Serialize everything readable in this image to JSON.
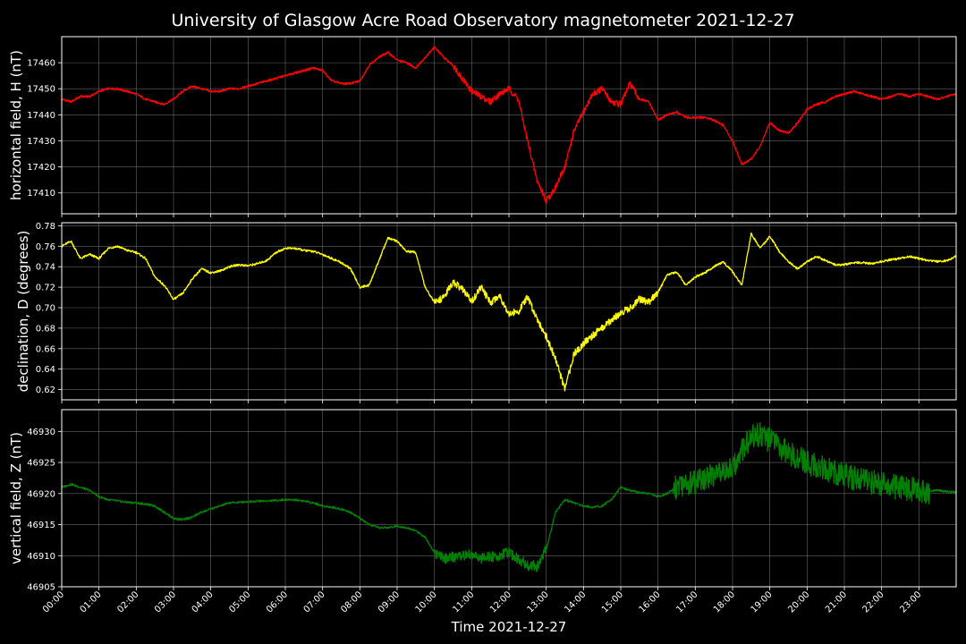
{
  "chart_data": {
    "type": "line",
    "title": "University of Glasgow Acre Road Observatory magnetometer 2021-12-27",
    "xlabel": "Time 2021-12-27",
    "x_ticks": [
      "00:00",
      "01:00",
      "02:00",
      "03:00",
      "04:00",
      "05:00",
      "06:00",
      "07:00",
      "08:00",
      "09:00",
      "10:00",
      "11:00",
      "12:00",
      "13:00",
      "14:00",
      "15:00",
      "16:00",
      "17:00",
      "18:00",
      "19:00",
      "20:00",
      "21:00",
      "22:00",
      "23:00"
    ],
    "xlim": [
      0,
      24
    ],
    "grid": true,
    "colors": {
      "background": "#000000",
      "grid": "#808080",
      "H": "#ff0000",
      "D": "#ffff00",
      "Z": "#008000"
    },
    "panels": [
      {
        "name": "H",
        "ylabel": "horizontal field, H (nT)",
        "color": "#ff0000",
        "ylim": [
          17402,
          17470
        ],
        "yticks": [
          17410,
          17420,
          17430,
          17440,
          17450,
          17460
        ],
        "x": [
          0,
          0.25,
          0.5,
          0.75,
          1,
          1.25,
          1.5,
          1.75,
          2,
          2.25,
          2.5,
          2.75,
          3,
          3.25,
          3.5,
          3.75,
          4,
          4.25,
          4.5,
          4.75,
          5,
          5.25,
          5.5,
          5.75,
          6,
          6.25,
          6.5,
          6.75,
          7,
          7.25,
          7.5,
          7.75,
          8,
          8.25,
          8.5,
          8.75,
          9,
          9.25,
          9.5,
          9.75,
          10,
          10.25,
          10.5,
          10.75,
          11,
          11.25,
          11.5,
          11.75,
          12,
          12.25,
          12.5,
          12.75,
          13,
          13.25,
          13.5,
          13.75,
          14,
          14.25,
          14.5,
          14.75,
          15,
          15.25,
          15.5,
          15.75,
          16,
          16.25,
          16.5,
          16.75,
          17,
          17.25,
          17.5,
          17.75,
          18,
          18.25,
          18.5,
          18.75,
          19,
          19.25,
          19.5,
          19.75,
          20,
          20.25,
          20.5,
          20.75,
          21,
          21.25,
          21.5,
          21.75,
          22,
          22.25,
          22.5,
          22.75,
          23,
          23.25,
          23.5,
          23.75,
          24
        ],
        "y": [
          17446,
          17445,
          17447,
          17447,
          17449,
          17450,
          17450,
          17449,
          17448,
          17446,
          17445,
          17444,
          17446,
          17449,
          17451,
          17450,
          17449,
          17449,
          17450,
          17450,
          17451,
          17452,
          17453,
          17454,
          17455,
          17456,
          17457,
          17458,
          17457,
          17453,
          17452,
          17452,
          17453,
          17459,
          17462,
          17464,
          17461,
          17460,
          17458,
          17462,
          17466,
          17462,
          17459,
          17454,
          17449,
          17447,
          17445,
          17448,
          17450,
          17446,
          17430,
          17415,
          17407,
          17412,
          17420,
          17434,
          17441,
          17448,
          17450,
          17445,
          17444,
          17452,
          17446,
          17445,
          17438,
          17440,
          17441,
          17439,
          17439,
          17439,
          17438,
          17436,
          17430,
          17421,
          17423,
          17428,
          17437,
          17434,
          17433,
          17437,
          17442,
          17444,
          17445,
          17447,
          17448,
          17449,
          17448,
          17447,
          17446,
          17447,
          17448,
          17447,
          17448,
          17447,
          17446,
          17447,
          17448
        ]
      },
      {
        "name": "D",
        "ylabel": "declination, D (degrees)",
        "color": "#ffff00",
        "ylim": [
          0.61,
          0.783
        ],
        "yticks": [
          0.62,
          0.64,
          0.66,
          0.68,
          0.7,
          0.72,
          0.74,
          0.76,
          0.78
        ],
        "x": [
          0,
          0.25,
          0.5,
          0.75,
          1,
          1.25,
          1.5,
          1.75,
          2,
          2.25,
          2.5,
          2.75,
          3,
          3.25,
          3.5,
          3.75,
          4,
          4.25,
          4.5,
          4.75,
          5,
          5.25,
          5.5,
          5.75,
          6,
          6.25,
          6.5,
          6.75,
          7,
          7.25,
          7.5,
          7.75,
          8,
          8.25,
          8.5,
          8.75,
          9,
          9.25,
          9.5,
          9.75,
          10,
          10.25,
          10.5,
          10.75,
          11,
          11.25,
          11.5,
          11.75,
          12,
          12.25,
          12.5,
          12.75,
          13,
          13.25,
          13.5,
          13.75,
          14,
          14.25,
          14.5,
          14.75,
          15,
          15.25,
          15.5,
          15.75,
          16,
          16.25,
          16.5,
          16.75,
          17,
          17.25,
          17.5,
          17.75,
          18,
          18.25,
          18.5,
          18.75,
          19,
          19.25,
          19.5,
          19.75,
          20,
          20.25,
          20.5,
          20.75,
          21,
          21.25,
          21.5,
          21.75,
          22,
          22.25,
          22.5,
          22.75,
          23,
          23.25,
          23.5,
          23.75,
          24
        ],
        "y": [
          0.76,
          0.765,
          0.748,
          0.752,
          0.748,
          0.758,
          0.76,
          0.756,
          0.754,
          0.748,
          0.73,
          0.722,
          0.708,
          0.714,
          0.728,
          0.738,
          0.734,
          0.736,
          0.74,
          0.742,
          0.741,
          0.743,
          0.746,
          0.754,
          0.758,
          0.758,
          0.756,
          0.755,
          0.752,
          0.748,
          0.744,
          0.738,
          0.72,
          0.722,
          0.745,
          0.768,
          0.765,
          0.755,
          0.754,
          0.72,
          0.705,
          0.71,
          0.725,
          0.718,
          0.706,
          0.72,
          0.705,
          0.712,
          0.694,
          0.696,
          0.71,
          0.69,
          0.672,
          0.65,
          0.62,
          0.655,
          0.665,
          0.673,
          0.68,
          0.688,
          0.695,
          0.7,
          0.708,
          0.705,
          0.715,
          0.732,
          0.735,
          0.722,
          0.73,
          0.734,
          0.74,
          0.745,
          0.735,
          0.722,
          0.772,
          0.758,
          0.77,
          0.755,
          0.745,
          0.738,
          0.745,
          0.75,
          0.746,
          0.742,
          0.742,
          0.744,
          0.744,
          0.743,
          0.745,
          0.747,
          0.748,
          0.75,
          0.748,
          0.746,
          0.745,
          0.746,
          0.75
        ]
      },
      {
        "name": "Z",
        "ylabel": "vertical field, Z (nT)",
        "color": "#008000",
        "ylim": [
          46905,
          46933.5
        ],
        "yticks": [
          46905,
          46910,
          46915,
          46920,
          46925,
          46930
        ],
        "x": [
          0,
          0.25,
          0.5,
          0.75,
          1,
          1.25,
          1.5,
          1.75,
          2,
          2.25,
          2.5,
          2.75,
          3,
          3.25,
          3.5,
          3.75,
          4,
          4.25,
          4.5,
          4.75,
          5,
          5.25,
          5.5,
          5.75,
          6,
          6.25,
          6.5,
          6.75,
          7,
          7.25,
          7.5,
          7.75,
          8,
          8.25,
          8.5,
          8.75,
          9,
          9.25,
          9.5,
          9.75,
          10,
          10.25,
          10.5,
          10.75,
          11,
          11.25,
          11.5,
          11.75,
          12,
          12.25,
          12.5,
          12.75,
          13,
          13.25,
          13.5,
          13.75,
          14,
          14.25,
          14.5,
          14.75,
          15,
          15.25,
          15.5,
          15.75,
          16,
          16.25,
          16.5,
          16.75,
          17,
          17.25,
          17.5,
          17.75,
          18,
          18.25,
          18.5,
          18.75,
          19,
          19.25,
          19.5,
          19.75,
          20,
          20.25,
          20.5,
          20.75,
          21,
          21.25,
          21.5,
          21.75,
          22,
          22.25,
          22.5,
          22.75,
          23,
          23.25,
          23.5,
          23.75,
          24
        ],
        "y": [
          46921,
          46921.5,
          46921,
          46920.5,
          46919.5,
          46919,
          46918.8,
          46918.6,
          46918.5,
          46918.3,
          46918,
          46917,
          46916,
          46915.8,
          46916.2,
          46917,
          46917.5,
          46918,
          46918.5,
          46918.6,
          46918.7,
          46918.8,
          46918.8,
          46918.9,
          46919,
          46919,
          46918.8,
          46918.5,
          46918,
          46917.8,
          46917.5,
          46917,
          46916,
          46915,
          46914.5,
          46914.5,
          46914.8,
          46914.5,
          46914,
          46913,
          46910.5,
          46909.5,
          46909.8,
          46910,
          46910.2,
          46909.5,
          46909.8,
          46910,
          46910.5,
          46909.5,
          46908.5,
          46908.3,
          46911,
          46917,
          46919,
          46918.5,
          46918,
          46917.8,
          46918,
          46919,
          46921,
          46920.5,
          46920.2,
          46920,
          46919.5,
          46920,
          46921,
          46921.5,
          46922,
          46922.5,
          46923,
          46923.5,
          46924,
          46927,
          46929,
          46929.5,
          46928.5,
          46927.5,
          46926.5,
          46925.8,
          46925,
          46924.5,
          46924,
          46923.5,
          46923,
          46922.5,
          46922,
          46921.8,
          46921.5,
          46921.2,
          46921,
          46920.8,
          46920.5,
          46920.3,
          46920.5,
          46920.3,
          46920.2
        ]
      }
    ]
  }
}
